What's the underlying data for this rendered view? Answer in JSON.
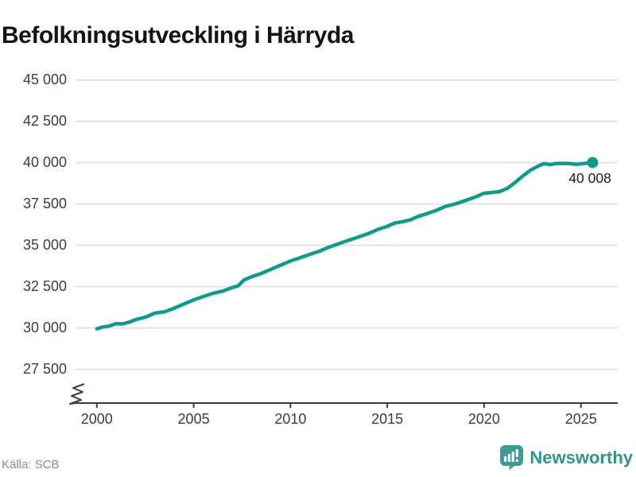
{
  "title": "Befolkningsutveckling i Härryda",
  "source": "Källa: SCB",
  "branding": {
    "name": "Newsworthy",
    "icon": "newsworthy-speech-bubble-chart-icon"
  },
  "colors": {
    "line": "#109a8d",
    "grid": "#e3e3e3",
    "axis": "#3c3c3c",
    "tick_label": "#3d3d3d",
    "brand_icon": "#3a9c94",
    "brand_text": "#2f968e"
  },
  "chart_data": {
    "type": "line",
    "title": "Befolkningsutveckling i Härryda",
    "xlabel": "",
    "ylabel": "",
    "grid": "horizontal",
    "legend": "none",
    "axis_break_bottom_left": true,
    "xlim": [
      1998.9,
      2026.9
    ],
    "ylim": [
      27500,
      45000
    ],
    "x_ticks": [
      2000,
      2005,
      2010,
      2015,
      2020,
      2025
    ],
    "x_tick_labels": [
      "2000",
      "2005",
      "2010",
      "2015",
      "2020",
      "2025"
    ],
    "y_ticks": [
      27500,
      30000,
      32500,
      35000,
      37500,
      40000,
      42500,
      45000
    ],
    "y_tick_labels": [
      "27 500",
      "30 000",
      "32 500",
      "35 000",
      "37 500",
      "40 000",
      "42 500",
      "45 000"
    ],
    "x": [
      2000.0,
      2000.3,
      2000.6,
      2001.0,
      2001.3,
      2001.7,
      2002.0,
      2002.5,
      2003.0,
      2003.5,
      2004.0,
      2004.5,
      2005.0,
      2005.5,
      2006.0,
      2006.5,
      2007.0,
      2007.3,
      2007.6,
      2008.0,
      2008.5,
      2009.0,
      2009.5,
      2010.0,
      2010.5,
      2011.0,
      2011.5,
      2012.0,
      2012.5,
      2013.0,
      2013.5,
      2014.0,
      2014.5,
      2015.0,
      2015.4,
      2015.8,
      2016.2,
      2016.6,
      2017.0,
      2017.5,
      2018.0,
      2018.5,
      2019.0,
      2019.5,
      2020.0,
      2020.4,
      2020.8,
      2021.2,
      2021.6,
      2022.0,
      2022.4,
      2022.8,
      2023.1,
      2023.4,
      2023.7,
      2024.0,
      2024.4,
      2024.8,
      2025.2,
      2025.6
    ],
    "y": [
      29950,
      30060,
      30100,
      30260,
      30240,
      30360,
      30500,
      30650,
      30900,
      30980,
      31200,
      31450,
      31700,
      31900,
      32100,
      32230,
      32450,
      32550,
      32900,
      33100,
      33300,
      33550,
      33800,
      34050,
      34250,
      34450,
      34650,
      34900,
      35100,
      35300,
      35500,
      35700,
      35950,
      36150,
      36350,
      36430,
      36550,
      36750,
      36900,
      37100,
      37350,
      37500,
      37700,
      37900,
      38150,
      38200,
      38250,
      38450,
      38800,
      39200,
      39550,
      39800,
      39950,
      39880,
      39950,
      39960,
      39950,
      39900,
      39960,
      40008
    ],
    "end_value": 40008,
    "end_label": "40 008"
  }
}
